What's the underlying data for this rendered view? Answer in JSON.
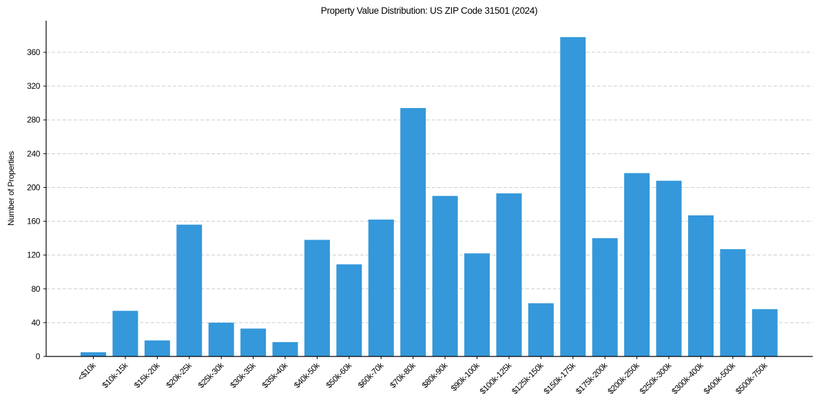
{
  "chart_data": {
    "type": "bar",
    "title": "Property Value Distribution: US ZIP Code 31501 (2024)",
    "xlabel": "",
    "ylabel": "Number of Properties",
    "categories": [
      "<$10k",
      "$10k-15k",
      "$15k-20k",
      "$20k-25k",
      "$25k-30k",
      "$30k-35k",
      "$35k-40k",
      "$40k-50k",
      "$50k-60k",
      "$60k-70k",
      "$70k-80k",
      "$80k-90k",
      "$90k-100k",
      "$100k-125k",
      "$125k-150k",
      "$150k-175k",
      "$175k-200k",
      "$200k-250k",
      "$250k-300k",
      "$300k-400k",
      "$400k-500k",
      "$500k-750k"
    ],
    "values": [
      5,
      54,
      19,
      156,
      40,
      33,
      17,
      138,
      109,
      162,
      294,
      190,
      122,
      193,
      63,
      378,
      140,
      217,
      208,
      167,
      127,
      56
    ],
    "yticks": [
      0,
      40,
      80,
      120,
      160,
      200,
      240,
      280,
      320,
      360
    ],
    "ylim": [
      0,
      397
    ],
    "grid": {
      "axis": "y",
      "style": "dashed",
      "color": "#cccccc"
    },
    "bar_color": "#3498db",
    "legend": null
  }
}
